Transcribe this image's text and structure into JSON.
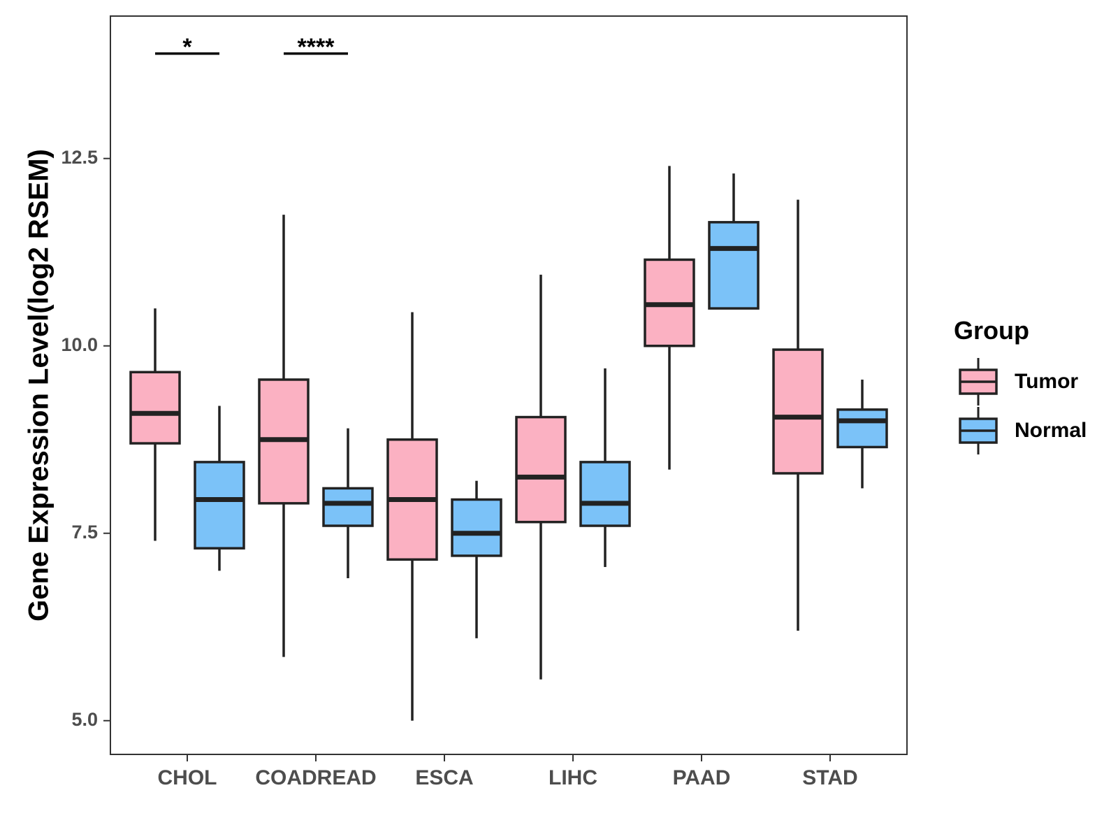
{
  "chart_data": {
    "type": "box",
    "title": "",
    "xlabel": "",
    "ylabel": "Gene Expression Level(log2 RSEM)",
    "ylim": [
      4.55,
      14.4
    ],
    "yticks": [
      5.0,
      7.5,
      10.0,
      12.5
    ],
    "ytick_labels": [
      "5.0",
      "7.5",
      "10.0",
      "12.5"
    ],
    "categories": [
      "CHOL",
      "COADREAD",
      "ESCA",
      "LIHC",
      "PAAD",
      "STAD"
    ],
    "grid": false,
    "legend": {
      "title": "Group",
      "position": "right",
      "entries": [
        "Tumor",
        "Normal"
      ]
    },
    "series": [
      {
        "name": "Tumor",
        "color": "#fbb1c2",
        "boxes": [
          {
            "min": 7.4,
            "q1": 8.7,
            "median": 9.1,
            "q3": 9.65,
            "max": 10.5
          },
          {
            "min": 5.85,
            "q1": 7.9,
            "median": 8.75,
            "q3": 9.55,
            "max": 11.75
          },
          {
            "min": 5.0,
            "q1": 7.15,
            "median": 7.95,
            "q3": 8.75,
            "max": 10.45
          },
          {
            "min": 5.55,
            "q1": 7.65,
            "median": 8.25,
            "q3": 9.05,
            "max": 10.95
          },
          {
            "min": 8.35,
            "q1": 10.0,
            "median": 10.55,
            "q3": 11.15,
            "max": 12.4
          },
          {
            "min": 6.2,
            "q1": 8.3,
            "median": 9.05,
            "q3": 9.95,
            "max": 11.95
          }
        ]
      },
      {
        "name": "Normal",
        "color": "#7bc2f8",
        "boxes": [
          {
            "min": 7.0,
            "q1": 7.3,
            "median": 7.95,
            "q3": 8.45,
            "max": 9.2
          },
          {
            "min": 6.9,
            "q1": 7.6,
            "median": 7.9,
            "q3": 8.1,
            "max": 8.9
          },
          {
            "min": 6.1,
            "q1": 7.2,
            "median": 7.5,
            "q3": 7.95,
            "max": 8.2
          },
          {
            "min": 7.05,
            "q1": 7.6,
            "median": 7.9,
            "q3": 8.45,
            "max": 9.7
          },
          {
            "min": 10.5,
            "q1": 10.5,
            "median": 11.3,
            "q3": 11.65,
            "max": 12.3
          },
          {
            "min": 8.1,
            "q1": 8.65,
            "median": 9.0,
            "q3": 9.15,
            "max": 9.55
          }
        ]
      }
    ],
    "annotations": [
      {
        "category": "CHOL",
        "label": "*",
        "y": 13.9
      },
      {
        "category": "COADREAD",
        "label": "****",
        "y": 13.9
      }
    ]
  }
}
